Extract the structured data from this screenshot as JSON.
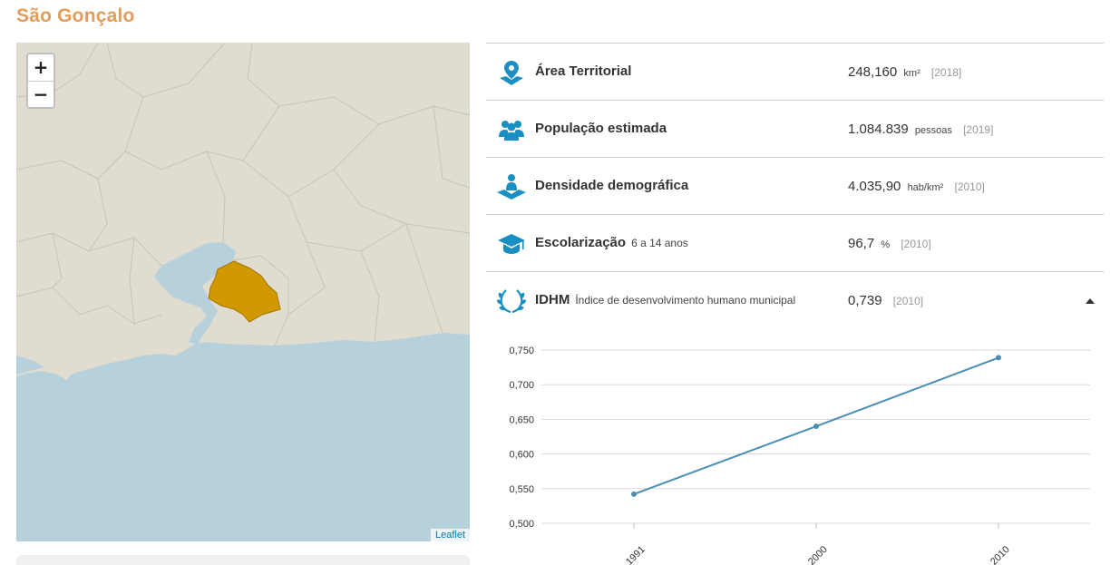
{
  "page": {
    "title": "São Gonçalo"
  },
  "map": {
    "zoom_in_label": "+",
    "zoom_out_label": "−",
    "attribution": "Leaflet",
    "colors": {
      "water": "#b7d1dc",
      "land": "#e0dcd0",
      "highlight": "#d19800",
      "border": "#c9c3b4"
    }
  },
  "indicators": [
    {
      "icon": "map-pin-icon",
      "label": "Área Territorial",
      "sublabel": "",
      "value": "248,160",
      "unit": "km²",
      "year": "[2018]"
    },
    {
      "icon": "people-icon",
      "label": "População estimada",
      "sublabel": "",
      "value": "1.084.839",
      "unit": "pessoas",
      "year": "[2019]"
    },
    {
      "icon": "density-icon",
      "label": "Densidade demográfica",
      "sublabel": "",
      "value": "4.035,90",
      "unit": "hab/km²",
      "year": "[2010]"
    },
    {
      "icon": "graduation-cap-icon",
      "label": "Escolarização",
      "sublabel": "6 a 14 anos",
      "value": "96,7",
      "unit": "%",
      "year": "[2010]"
    },
    {
      "icon": "laurel-icon",
      "label": "IDHM",
      "sublabel": "Índice de desenvolvimento humano municipal",
      "value": "0,739",
      "unit": "",
      "year": "[2010]"
    }
  ],
  "chart_data": {
    "type": "line",
    "categories": [
      "1991",
      "2000",
      "2010"
    ],
    "values": [
      0.542,
      0.64,
      0.739
    ],
    "ylim": [
      0.5,
      0.75
    ],
    "yticks": [
      0.5,
      0.55,
      0.6,
      0.65,
      0.7,
      0.75
    ],
    "ytick_labels": [
      "0,500",
      "0,550",
      "0,600",
      "0,650",
      "0,700",
      "0,750"
    ],
    "grid": true,
    "line_color": "#4a8db5"
  }
}
